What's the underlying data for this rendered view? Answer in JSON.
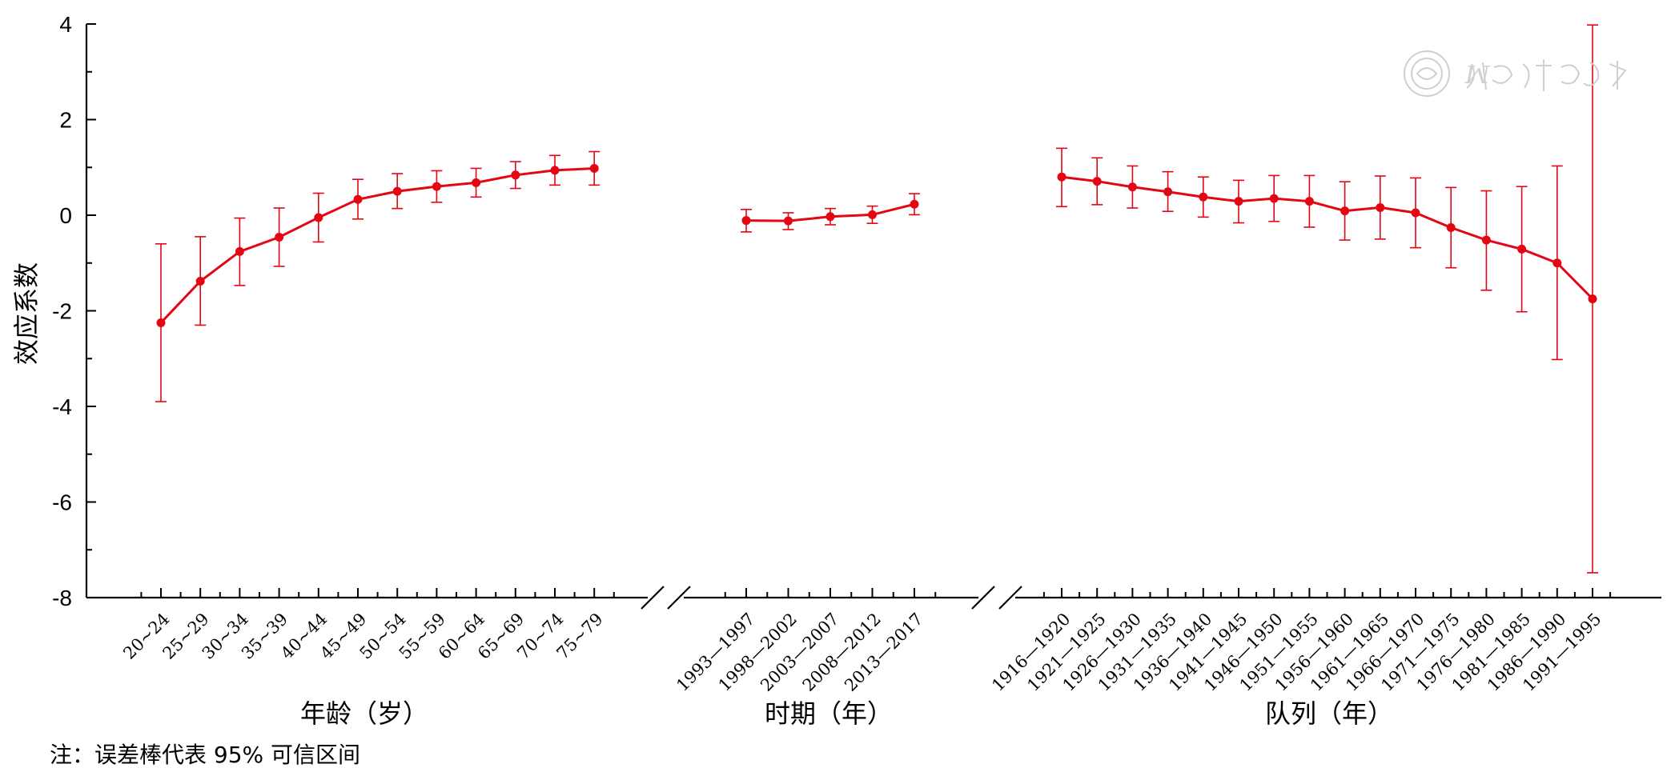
{
  "chart_data": {
    "type": "line",
    "ylabel": "效应系数",
    "ylim": [
      -8,
      4
    ],
    "yticks": [
      -8,
      -6,
      -4,
      -2,
      0,
      2,
      4
    ],
    "yticks_labels": [
      "-8",
      "-6",
      "-4",
      "-2",
      "0",
      "2",
      "4"
    ],
    "grid": false,
    "colors": {
      "series": "#e30613",
      "axis": "#000000"
    },
    "groups": [
      {
        "name": "年龄（岁）",
        "categories": [
          "20~24",
          "25~29",
          "30~34",
          "35~39",
          "40~44",
          "45~49",
          "50~54",
          "55~59",
          "60~64",
          "65~69",
          "70~74",
          "75~79"
        ],
        "values": [
          -2.25,
          -1.38,
          -0.76,
          -0.46,
          -0.05,
          0.33,
          0.5,
          0.6,
          0.68,
          0.84,
          0.94,
          0.98
        ],
        "lower": [
          -3.9,
          -2.3,
          -1.47,
          -1.07,
          -0.56,
          -0.08,
          0.14,
          0.27,
          0.38,
          0.56,
          0.63,
          0.63
        ],
        "upper": [
          -0.6,
          -0.45,
          -0.06,
          0.15,
          0.46,
          0.75,
          0.87,
          0.93,
          0.98,
          1.12,
          1.25,
          1.33
        ]
      },
      {
        "name": "时期（年）",
        "categories": [
          "1993—1997",
          "1998—2002",
          "2003—2007",
          "2008—2012",
          "2013—2017"
        ],
        "values": [
          -0.11,
          -0.12,
          -0.03,
          0.01,
          0.23
        ],
        "lower": [
          -0.35,
          -0.3,
          -0.2,
          -0.17,
          0.01
        ],
        "upper": [
          0.12,
          0.05,
          0.14,
          0.19,
          0.45
        ]
      },
      {
        "name": "队列（年）",
        "categories": [
          "1916—1920",
          "1921—1925",
          "1926—1930",
          "1931—1935",
          "1936—1940",
          "1941—1945",
          "1946—1950",
          "1951—1955",
          "1956—1960",
          "1961—1965",
          "1966—1970",
          "1971—1975",
          "1976—1980",
          "1981—1985",
          "1986—1990",
          "1991—1995"
        ],
        "values": [
          0.8,
          0.71,
          0.59,
          0.49,
          0.38,
          0.29,
          0.35,
          0.29,
          0.09,
          0.16,
          0.05,
          -0.26,
          -0.52,
          -0.71,
          -1.0,
          -1.75
        ],
        "lower": [
          0.18,
          0.22,
          0.15,
          0.08,
          -0.04,
          -0.16,
          -0.13,
          -0.25,
          -0.52,
          -0.5,
          -0.68,
          -1.1,
          -1.57,
          -2.02,
          -3.02,
          -7.48
        ],
        "upper": [
          1.4,
          1.2,
          1.03,
          0.91,
          0.8,
          0.73,
          0.83,
          0.83,
          0.7,
          0.82,
          0.78,
          0.58,
          0.51,
          0.6,
          1.03,
          3.98
        ]
      }
    ]
  },
  "note": "注：误差棒代表 95% 可信区间",
  "watermark": "中华医学会"
}
